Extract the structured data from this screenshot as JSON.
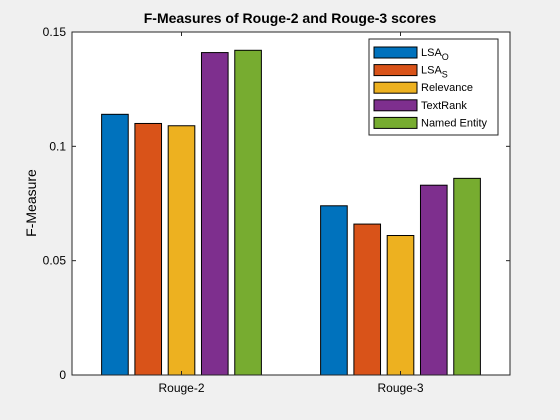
{
  "chart_data": {
    "type": "bar",
    "title": "F-Measures of Rouge-2 and Rouge-3 scores",
    "xlabel": "",
    "ylabel": "F-Measure",
    "ylim": [
      0,
      0.15
    ],
    "yticks": [
      "0",
      "0.05",
      "0.1",
      "0.15"
    ],
    "categories": [
      "Rouge-2",
      "Rouge-3"
    ],
    "series": [
      {
        "name": "LSA_O",
        "label_main": "LSA",
        "label_sub": "O",
        "color": "#0072bd",
        "values": [
          0.114,
          0.074
        ]
      },
      {
        "name": "LSA_S",
        "label_main": "LSA",
        "label_sub": "S",
        "color": "#d95319",
        "values": [
          0.11,
          0.066
        ]
      },
      {
        "name": "Relevance",
        "label_main": "Relevance",
        "label_sub": "",
        "color": "#edb120",
        "values": [
          0.109,
          0.061
        ]
      },
      {
        "name": "TextRank",
        "label_main": "TextRank",
        "label_sub": "",
        "color": "#7e2f8e",
        "values": [
          0.141,
          0.083
        ]
      },
      {
        "name": "Named Entity",
        "label_main": "Named Entity",
        "label_sub": "",
        "color": "#77ac30",
        "values": [
          0.142,
          0.086
        ]
      }
    ],
    "grid": false,
    "legend_position": "top-right"
  }
}
